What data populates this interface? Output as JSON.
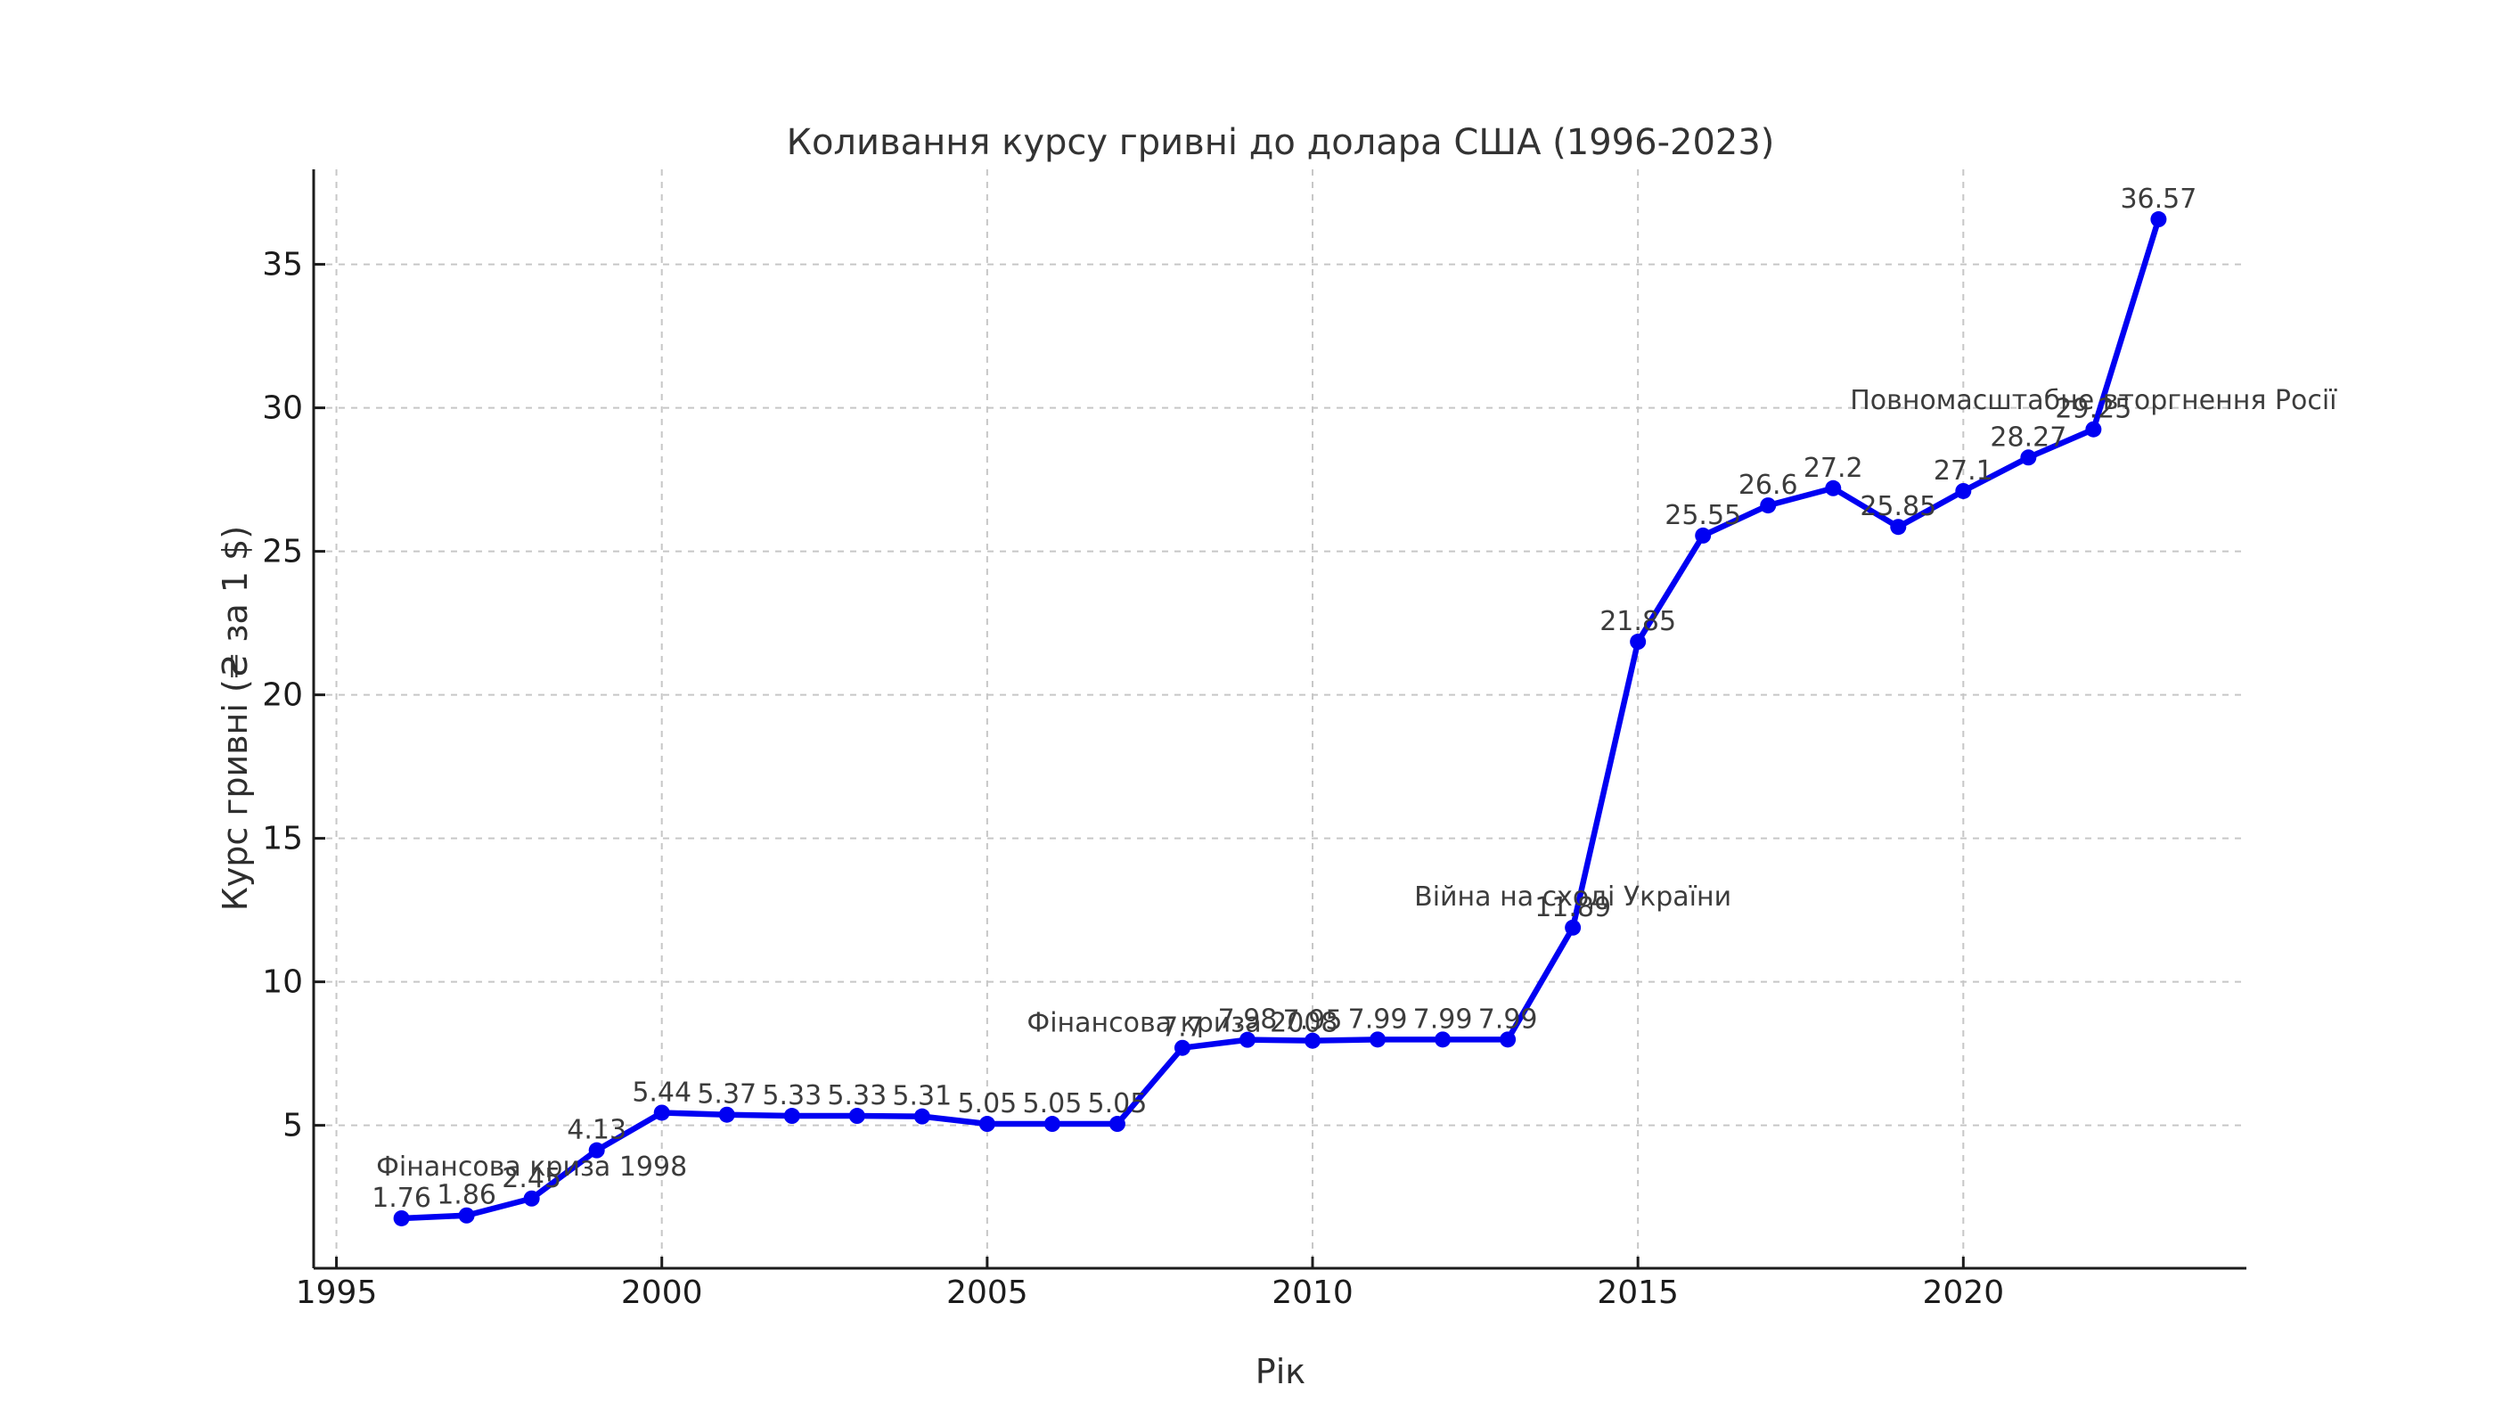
{
  "chart_data": {
    "type": "line",
    "title": "Коливання курсу гривні до долара США (1996-2023)",
    "xlabel": "Рік",
    "ylabel": "Курс гривні (₴ за 1 $)",
    "x": [
      1996,
      1997,
      1998,
      1999,
      2000,
      2001,
      2002,
      2003,
      2004,
      2005,
      2006,
      2007,
      2008,
      2009,
      2010,
      2011,
      2012,
      2013,
      2014,
      2015,
      2016,
      2017,
      2018,
      2019,
      2020,
      2021,
      2022,
      2023
    ],
    "values": [
      1.76,
      1.86,
      2.45,
      4.13,
      5.44,
      5.37,
      5.33,
      5.33,
      5.31,
      5.05,
      5.05,
      5.05,
      7.7,
      7.98,
      7.95,
      7.99,
      7.99,
      7.99,
      11.89,
      21.85,
      25.55,
      26.6,
      27.2,
      25.85,
      27.1,
      28.27,
      29.25,
      36.57
    ],
    "point_labels": [
      "1.76",
      "1.86",
      "2.45",
      "4.13",
      "5.44",
      "5.37",
      "5.33",
      "5.33",
      "5.31",
      "5.05",
      "5.05",
      "5.05",
      "7.7",
      "7.98",
      "7.95",
      "7.99",
      "7.99",
      "7.99",
      "11.89",
      "21.85",
      "25.55",
      "26.6",
      "27.2",
      "25.85",
      "27.1",
      "28.27",
      "29.25",
      "36.57"
    ],
    "xticks": [
      1995,
      2000,
      2005,
      2010,
      2015,
      2020
    ],
    "yticks": [
      5,
      10,
      15,
      20,
      25,
      30,
      35
    ],
    "xlim": [
      1994.65,
      2024.35
    ],
    "ylim": [
      0.02,
      38.31
    ],
    "grid": true,
    "grid_style": "dashed",
    "legend_position": "none",
    "annotations": [
      {
        "text": "Фінансова криза 1998",
        "x": 1998,
        "y": 3.59
      },
      {
        "text": "Фінансова криза 2008",
        "x": 2008,
        "y": 8.6
      },
      {
        "text": "Війна на сході України",
        "x": 2014,
        "y": 13.0
      },
      {
        "text": "Повномасштабне вторгнення Росії",
        "x": 2022,
        "y": 30.3
      }
    ],
    "line_color": "#0000f2",
    "marker_color": "#0000f2",
    "grid_color": "#c7c7c7",
    "axis_color": "#1c1c1c",
    "text_color": "#3c3c3c",
    "background_color": "#ffffff"
  }
}
